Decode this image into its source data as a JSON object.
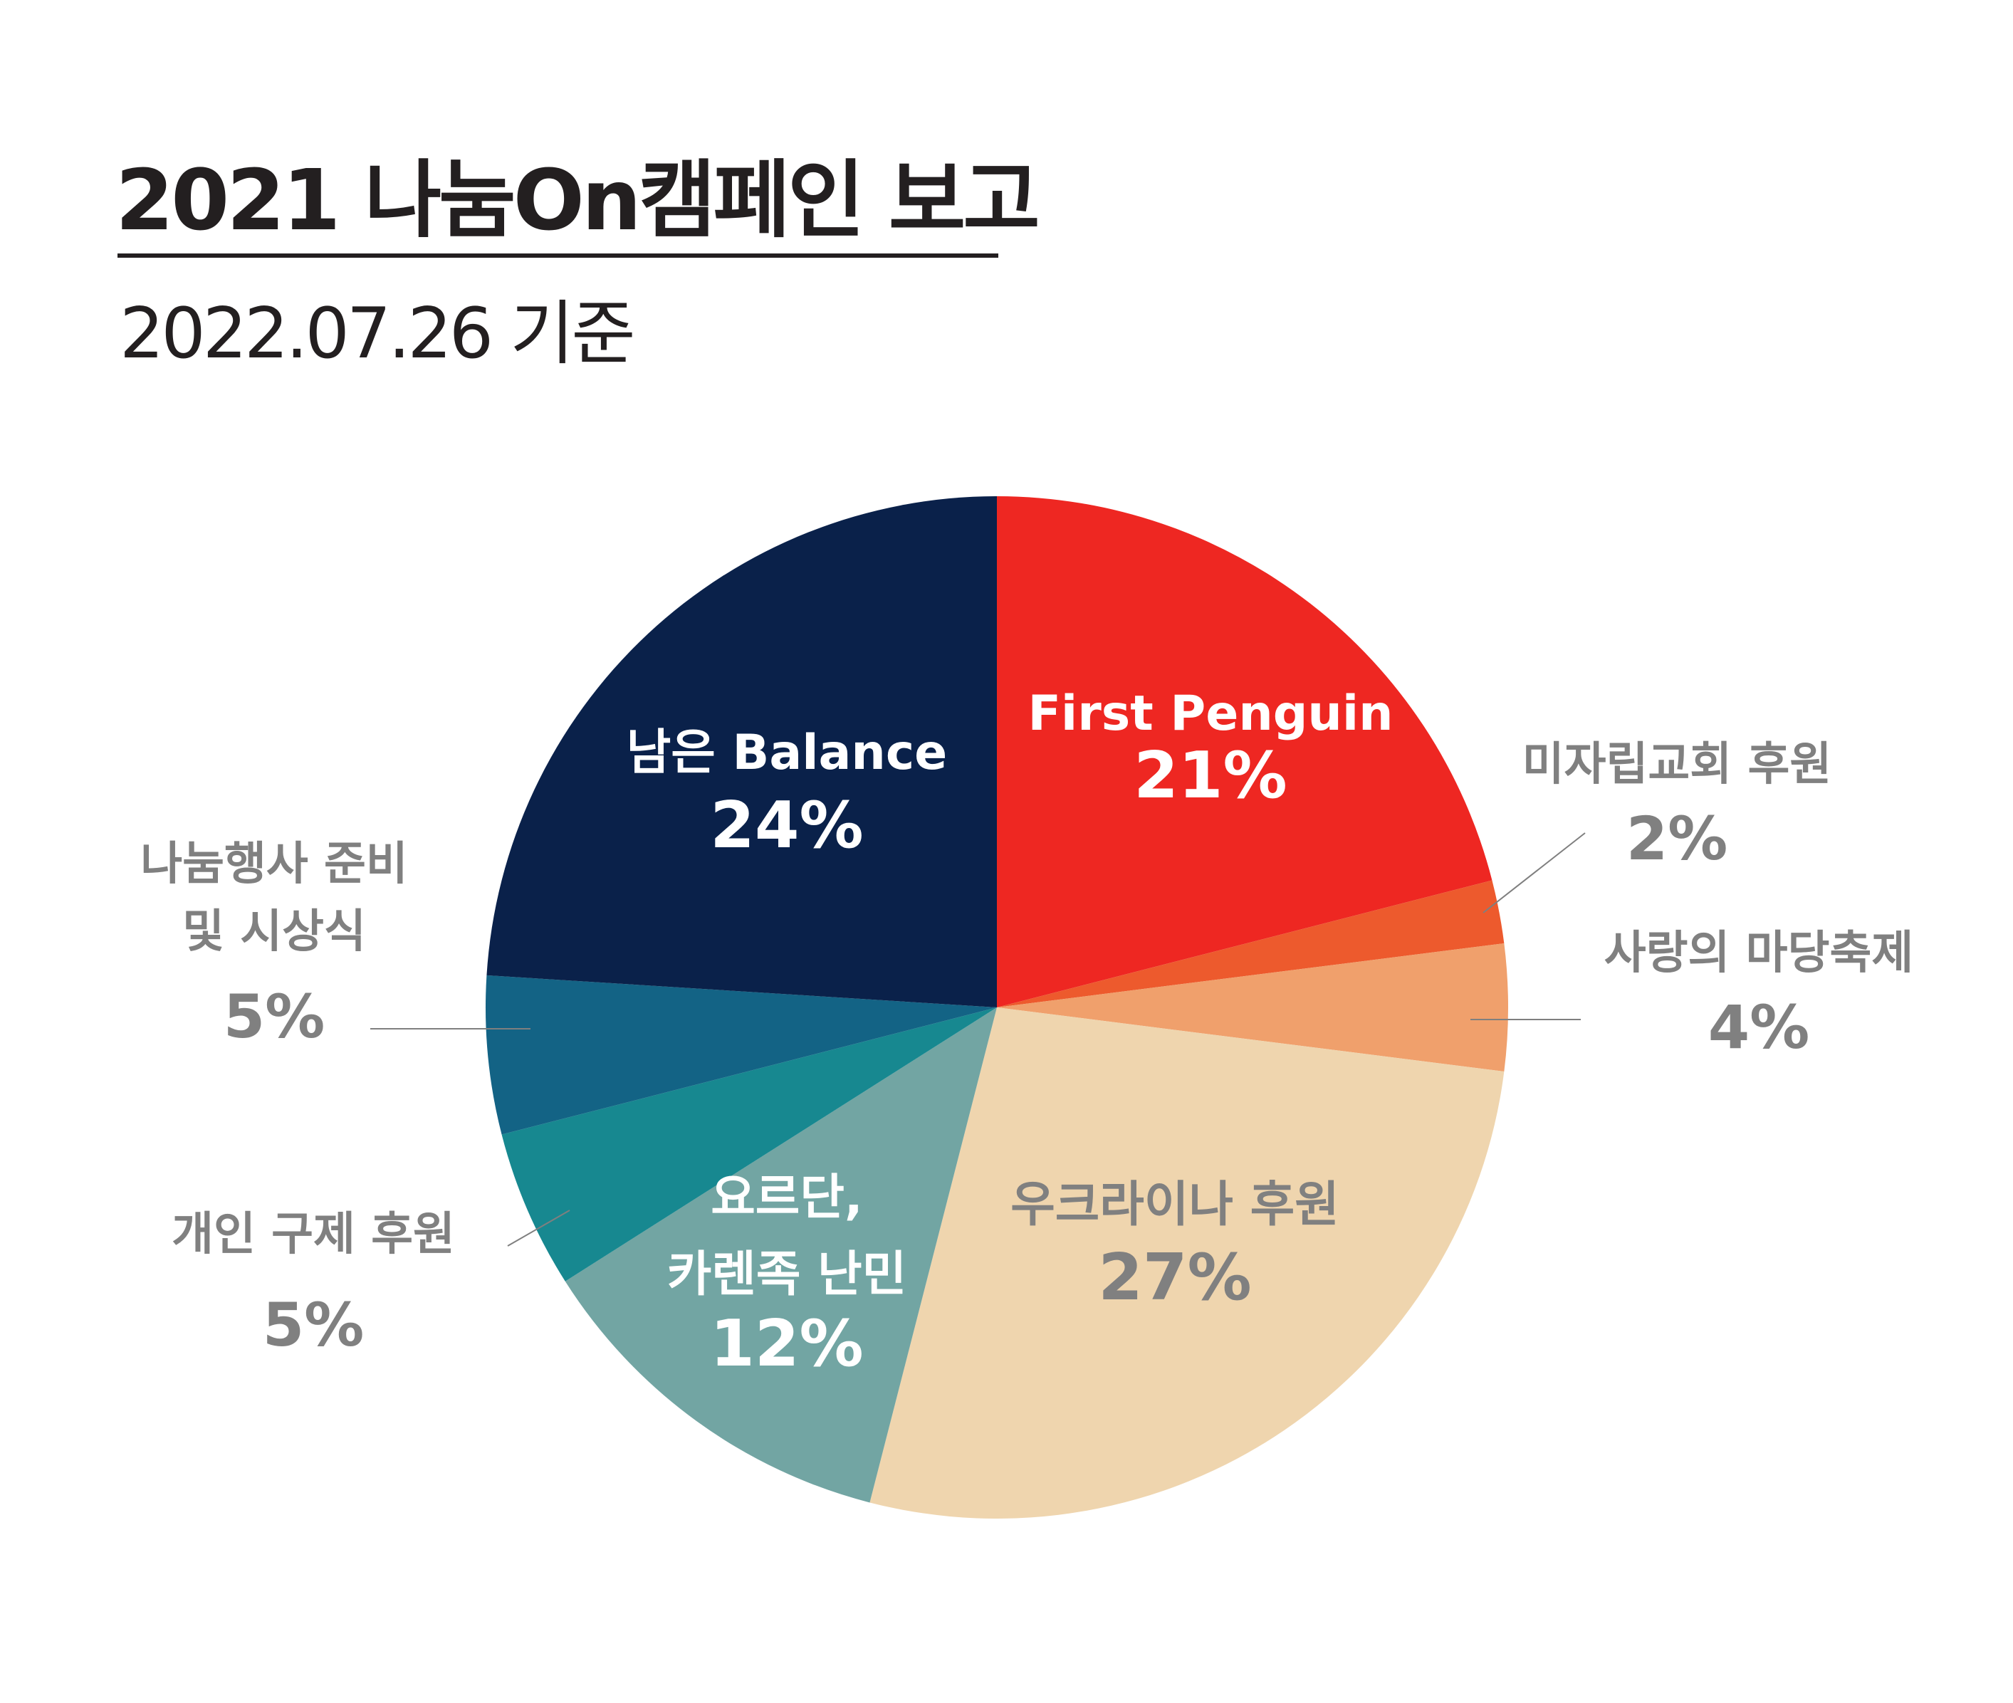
{
  "header": {
    "title": "2021 나눔On캠페인 보고",
    "subtitle": "2022.07.26 기준"
  },
  "chart_data": {
    "type": "pie",
    "title": "2021 나눔On캠페인 보고",
    "subtitle": "2022.07.26 기준",
    "start": "12 o'clock",
    "direction": "clockwise",
    "slices": [
      {
        "label": [
          "First Penguin"
        ],
        "value": 21,
        "value_text": "21%",
        "color": "#ee2722",
        "text_color": "#ffffff"
      },
      {
        "label": [
          "미자립교회 후원"
        ],
        "value": 2,
        "value_text": "2%",
        "color": "#ed5a2d",
        "text_color": "#808080"
      },
      {
        "label": [
          "사랑의 마당축제"
        ],
        "value": 4,
        "value_text": "4%",
        "color": "#f0a06c",
        "text_color": "#808080"
      },
      {
        "label": [
          "우크라이나 후원"
        ],
        "value": 27,
        "value_text": "27%",
        "color": "#efd5ae",
        "text_color": "#808080"
      },
      {
        "label": [
          "요르단,",
          "카렌족 난민"
        ],
        "value": 12,
        "value_text": "12%",
        "color": "#72a5a3",
        "text_color": "#ffffff"
      },
      {
        "label": [
          "개인 구제 후원"
        ],
        "value": 5,
        "value_text": "5%",
        "color": "#178890",
        "text_color": "#808080"
      },
      {
        "label": [
          "나눔행사 준비",
          "및 시상식"
        ],
        "value": 5,
        "value_text": "5%",
        "color": "#136385",
        "text_color": "#808080"
      },
      {
        "label": [
          "남은 Balance"
        ],
        "value": 24,
        "value_text": "24%",
        "color": "#0a214a",
        "text_color": "#ffffff"
      }
    ]
  }
}
